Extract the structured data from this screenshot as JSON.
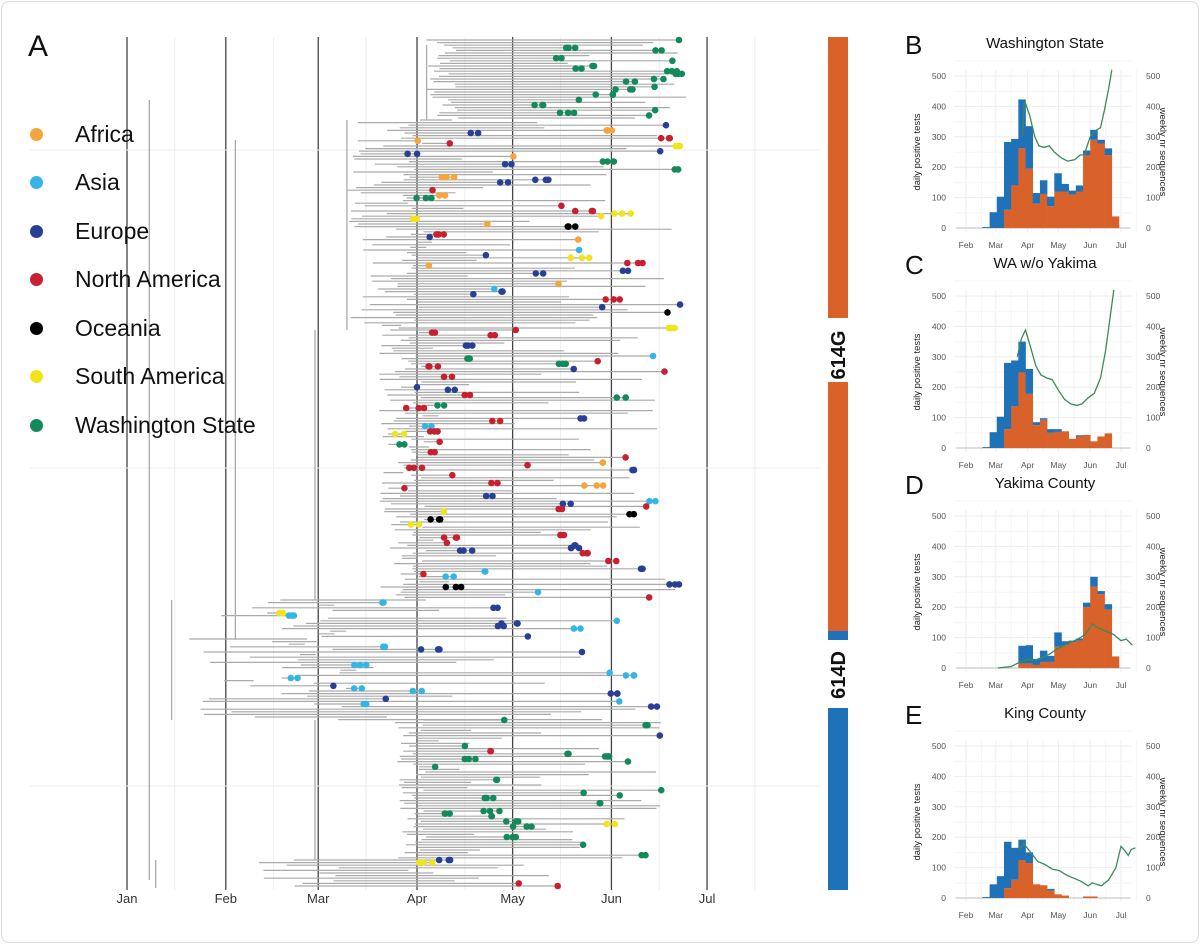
{
  "panel_a": {
    "letter": "A",
    "legend": [
      {
        "label": "Africa",
        "color": "#f5a53a"
      },
      {
        "label": "Asia",
        "color": "#35b5e5"
      },
      {
        "label": "Europe",
        "color": "#283f96"
      },
      {
        "label": "North America",
        "color": "#c8202f"
      },
      {
        "label": "Oceania",
        "color": "#000000"
      },
      {
        "label": "South America",
        "color": "#f2e41a"
      },
      {
        "label": "Washington State",
        "color": "#138a5a"
      }
    ],
    "x_ticks": [
      "Jan",
      "Feb",
      "Mar",
      "Apr",
      "May",
      "Jun",
      "Jul"
    ],
    "clades": [
      {
        "label": "614G",
        "color": "#d8622a"
      },
      {
        "label": "614D",
        "color": "#1f72b8"
      }
    ],
    "branch_color": "#aaaaaa"
  },
  "chart_data": [
    {
      "letter": "B",
      "type": "bar",
      "title": "Washington State",
      "ylabel": "daily positive tests",
      "y2label": "weekly nr sequences",
      "ylim": [
        0,
        500
      ],
      "y2lim": [
        0,
        500
      ],
      "yticks": [
        "0",
        "100",
        "200",
        "300",
        "400",
        "500"
      ],
      "y2ticks": [
        "0",
        "100",
        "200",
        "300",
        "400",
        "500"
      ],
      "x_ticks": [
        "Feb",
        "Mar",
        "Apr",
        "May",
        "Jun",
        "Jul"
      ],
      "bin_start": "02-17",
      "bin_days": 7,
      "stacked": true,
      "grid": true,
      "series": [
        {
          "color": "#d8622a",
          "values": [
            0,
            0,
            0,
            60,
            140,
            262,
            195,
            80,
            112,
            72,
            120,
            120,
            110,
            120,
            240,
            290,
            278,
            240,
            38
          ]
        },
        {
          "color": "#1f72b8",
          "values": [
            3,
            52,
            103,
            223,
            153,
            161,
            140,
            35,
            45,
            31,
            60,
            25,
            13,
            20,
            15,
            33,
            12,
            22,
            0
          ]
        }
      ],
      "line": {
        "color": "#3a8a5a",
        "x": [
          "03-27",
          "03-29",
          "04-03",
          "04-08",
          "04-12",
          "04-17",
          "04-22",
          "04-27",
          "05-04",
          "05-10",
          "05-17",
          "05-22",
          "05-26",
          "06-01",
          "06-06",
          "06-11",
          "06-15",
          "06-19",
          "06-22"
        ],
        "y": [
          300,
          420,
          370,
          300,
          270,
          265,
          270,
          250,
          230,
          220,
          225,
          240,
          240,
          300,
          320,
          330,
          390,
          460,
          520
        ]
      }
    },
    {
      "letter": "C",
      "type": "bar",
      "title": "WA w/o Yakima",
      "ylabel": "daily positive tests",
      "y2label": "weekly nr sequences",
      "ylim": [
        0,
        500
      ],
      "y2lim": [
        0,
        500
      ],
      "yticks": [
        "0",
        "100",
        "200",
        "300",
        "400",
        "500"
      ],
      "y2ticks": [
        "0",
        "100",
        "200",
        "300",
        "400",
        "500"
      ],
      "x_ticks": [
        "Feb",
        "Mar",
        "Apr",
        "May",
        "Jun",
        "Jul"
      ],
      "bin_start": "02-17",
      "bin_days": 7,
      "stacked": true,
      "grid": true,
      "series": [
        {
          "color": "#d8622a",
          "values": [
            0,
            0,
            0,
            62,
            137,
            248,
            178,
            75,
            93,
            50,
            53,
            55,
            30,
            38,
            43,
            22,
            38,
            48
          ]
        },
        {
          "color": "#1f72b8",
          "values": [
            3,
            52,
            103,
            218,
            151,
            102,
            82,
            10,
            5,
            12,
            9,
            0,
            0,
            4,
            0,
            0,
            0,
            0
          ]
        }
      ],
      "line": {
        "color": "#3a8a5a",
        "x": [
          "03-22",
          "03-26",
          "03-30",
          "04-04",
          "04-09",
          "04-14",
          "04-20",
          "04-25",
          "05-01",
          "05-07",
          "05-13",
          "05-19",
          "05-24",
          "05-30",
          "06-05",
          "06-11",
          "06-16",
          "06-20",
          "06-24"
        ],
        "y": [
          300,
          360,
          388,
          330,
          270,
          240,
          230,
          225,
          190,
          160,
          145,
          140,
          145,
          165,
          180,
          230,
          320,
          420,
          520
        ]
      }
    },
    {
      "letter": "D",
      "type": "bar",
      "title": "Yakima County",
      "ylabel": "daily positive tests",
      "y2label": "weekly nr sequences",
      "ylim": [
        0,
        500
      ],
      "y2lim": [
        0,
        500
      ],
      "yticks": [
        "0",
        "100",
        "200",
        "300",
        "400",
        "500"
      ],
      "y2ticks": [
        "0",
        "100",
        "200",
        "300",
        "400",
        "500"
      ],
      "x_ticks": [
        "Feb",
        "Mar",
        "Apr",
        "May",
        "Jun",
        "Jul"
      ],
      "bin_start": "03-23",
      "bin_days": 7,
      "stacked": true,
      "grid": true,
      "series": [
        {
          "color": "#d8622a",
          "values": [
            15,
            15,
            10,
            20,
            20,
            70,
            75,
            85,
            90,
            200,
            268,
            243,
            192,
            38
          ]
        },
        {
          "color": "#1f72b8",
          "values": [
            58,
            60,
            20,
            37,
            20,
            47,
            13,
            5,
            7,
            15,
            32,
            10,
            18,
            0
          ]
        }
      ],
      "line": {
        "color": "#3a8a5a",
        "x": [
          "03-03",
          "03-16",
          "03-22",
          "04-01",
          "04-08",
          "04-15",
          "04-22",
          "05-01",
          "05-10",
          "05-20",
          "05-27",
          "06-03",
          "06-10",
          "06-17",
          "06-24",
          "07-01",
          "07-06",
          "07-12"
        ],
        "y": [
          0,
          5,
          15,
          30,
          25,
          35,
          45,
          65,
          80,
          95,
          110,
          145,
          130,
          120,
          110,
          90,
          95,
          75
        ]
      }
    },
    {
      "letter": "E",
      "type": "bar",
      "title": "King County",
      "ylabel": "daily positive tests",
      "y2label": "weekly nr sequences",
      "ylim": [
        0,
        500
      ],
      "y2lim": [
        0,
        500
      ],
      "yticks": [
        "0",
        "100",
        "200",
        "300",
        "400",
        "500"
      ],
      "y2ticks": [
        "0",
        "100",
        "200",
        "300",
        "400",
        "500"
      ],
      "x_ticks": [
        "Feb",
        "Mar",
        "Apr",
        "May",
        "Jun",
        "Jul"
      ],
      "bin_start": "02-17",
      "bin_days": 7,
      "stacked": true,
      "grid": true,
      "series": [
        {
          "color": "#d8622a",
          "values": [
            0,
            0,
            0,
            32,
            60,
            125,
            115,
            45,
            42,
            25,
            12,
            8,
            0,
            0,
            5,
            5
          ]
        },
        {
          "color": "#1f72b8",
          "values": [
            3,
            45,
            72,
            153,
            105,
            67,
            35,
            0,
            0,
            5,
            0,
            0,
            0,
            0,
            0,
            0
          ]
        }
      ],
      "line": {
        "color": "#3a8a5a",
        "x": [
          "03-25",
          "03-28",
          "04-04",
          "04-11",
          "04-18",
          "04-25",
          "05-02",
          "05-09",
          "05-16",
          "05-23",
          "05-30",
          "06-03",
          "06-07",
          "06-12",
          "06-19",
          "06-26",
          "07-01",
          "07-05",
          "07-08",
          "07-11",
          "07-15"
        ],
        "y": [
          160,
          180,
          150,
          120,
          110,
          95,
          90,
          75,
          65,
          55,
          40,
          50,
          45,
          40,
          60,
          100,
          170,
          155,
          140,
          160,
          165
        ]
      }
    }
  ]
}
